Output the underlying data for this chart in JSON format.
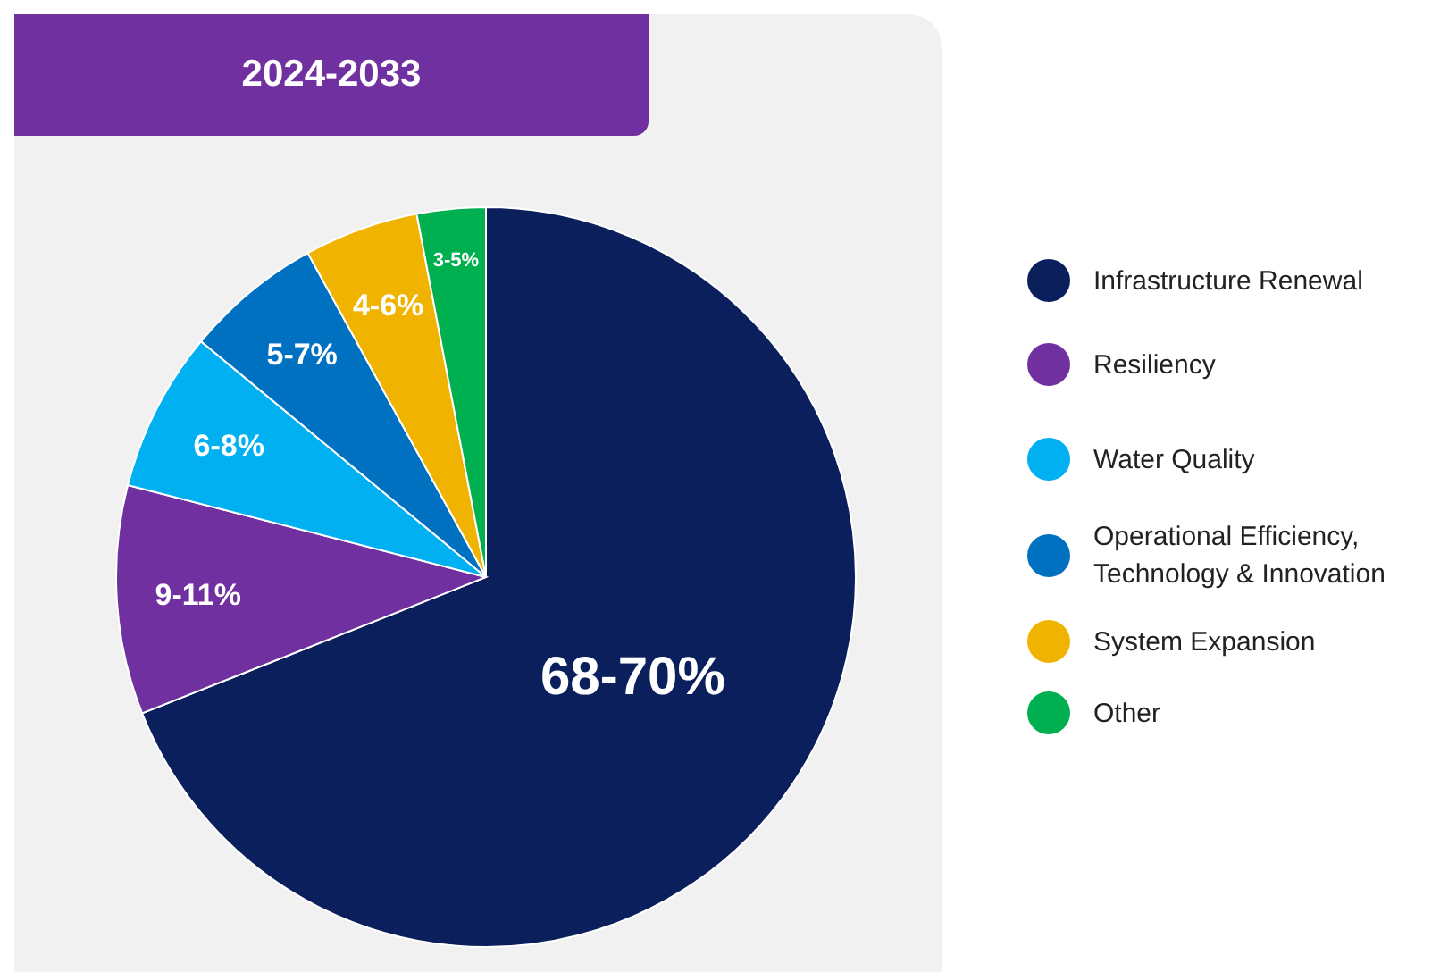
{
  "chart_data": {
    "type": "pie",
    "title": "2024-2033",
    "categories": [
      "Infrastructure Renewal",
      "Resiliency",
      "Water Quality",
      "Operational Efficiency, Technology & Innovation",
      "System Expansion",
      "Other"
    ],
    "values": [
      69,
      10,
      7,
      6,
      5,
      3
    ],
    "annotations": [
      "68-70%",
      "9-11%",
      "6-8%",
      "5-7%",
      "4-6%",
      "3-5%"
    ],
    "colors": [
      "#0a1f5c",
      "#7030a0",
      "#00b0f0",
      "#0070c0",
      "#f0b400",
      "#00b050"
    ],
    "legend": "right"
  }
}
